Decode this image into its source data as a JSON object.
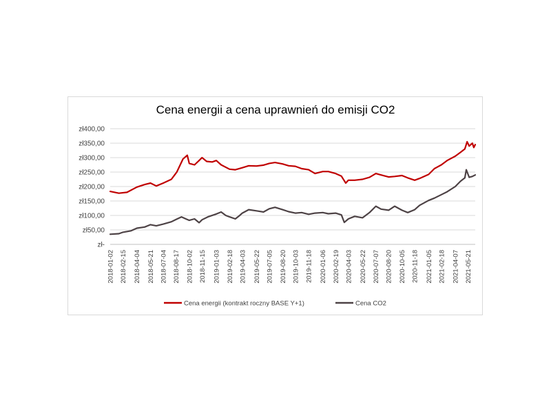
{
  "chart_data": {
    "type": "line",
    "title": "Cena energii a cena uprawnień do emisji CO2",
    "y_tick_labels": [
      "zł-",
      "zł50,00",
      "zł100,00",
      "zł150,00",
      "zł200,00",
      "zł250,00",
      "zł300,00",
      "zł350,00",
      "zł400,00"
    ],
    "ylim": [
      0,
      400
    ],
    "y_ticks": [
      0,
      50,
      100,
      150,
      200,
      250,
      300,
      350,
      400
    ],
    "x_tick_labels": [
      "2018-01-02",
      "2018-02-15",
      "2018-04-04",
      "2018-05-21",
      "2018-07-04",
      "2018-08-17",
      "2018-10-02",
      "2018-11-15",
      "2019-01-03",
      "2019-02-18",
      "2019-04-03",
      "2019-05-22",
      "2019-07-05",
      "2019-08-20",
      "2019-10-03",
      "2019-11-18",
      "2020-01-06",
      "2020-02-19",
      "2020-04-03",
      "2020-05-22",
      "2020-07-07",
      "2020-08-20",
      "2020-10-05",
      "2020-11-18",
      "2021-01-05",
      "2021-02-18",
      "2021-04-07",
      "2021-05-21"
    ],
    "x_range": [
      "2018-01-02",
      "2021-06-15"
    ],
    "grid": "horizontal",
    "legend_position": "bottom",
    "series": [
      {
        "name": "Cena energii (kontrakt roczny BASE Y+1)",
        "color": "#c00000",
        "points": [
          [
            "2018-01-02",
            183
          ],
          [
            "2018-02-01",
            177
          ],
          [
            "2018-03-01",
            180
          ],
          [
            "2018-04-04",
            198
          ],
          [
            "2018-05-01",
            207
          ],
          [
            "2018-05-21",
            212
          ],
          [
            "2018-06-10",
            202
          ],
          [
            "2018-07-04",
            212
          ],
          [
            "2018-08-01",
            225
          ],
          [
            "2018-08-20",
            250
          ],
          [
            "2018-09-10",
            295
          ],
          [
            "2018-09-25",
            308
          ],
          [
            "2018-10-02",
            280
          ],
          [
            "2018-10-20",
            275
          ],
          [
            "2018-11-05",
            290
          ],
          [
            "2018-11-15",
            300
          ],
          [
            "2018-12-01",
            287
          ],
          [
            "2018-12-20",
            285
          ],
          [
            "2019-01-03",
            290
          ],
          [
            "2019-01-20",
            275
          ],
          [
            "2019-02-18",
            260
          ],
          [
            "2019-03-10",
            258
          ],
          [
            "2019-04-03",
            265
          ],
          [
            "2019-04-25",
            272
          ],
          [
            "2019-05-22",
            271
          ],
          [
            "2019-06-15",
            274
          ],
          [
            "2019-07-05",
            280
          ],
          [
            "2019-07-25",
            283
          ],
          [
            "2019-08-20",
            278
          ],
          [
            "2019-09-10",
            272
          ],
          [
            "2019-10-03",
            270
          ],
          [
            "2019-10-25",
            262
          ],
          [
            "2019-11-18",
            258
          ],
          [
            "2019-12-10",
            245
          ],
          [
            "2020-01-06",
            252
          ],
          [
            "2020-01-25",
            252
          ],
          [
            "2020-02-19",
            245
          ],
          [
            "2020-03-10",
            236
          ],
          [
            "2020-03-25",
            212
          ],
          [
            "2020-04-03",
            222
          ],
          [
            "2020-04-25",
            222
          ],
          [
            "2020-05-22",
            225
          ],
          [
            "2020-06-15",
            232
          ],
          [
            "2020-07-07",
            245
          ],
          [
            "2020-07-25",
            240
          ],
          [
            "2020-08-20",
            233
          ],
          [
            "2020-09-10",
            235
          ],
          [
            "2020-10-05",
            238
          ],
          [
            "2020-10-25",
            230
          ],
          [
            "2020-11-18",
            222
          ],
          [
            "2020-12-05",
            228
          ],
          [
            "2021-01-05",
            242
          ],
          [
            "2021-01-25",
            262
          ],
          [
            "2021-02-18",
            275
          ],
          [
            "2021-03-10",
            290
          ],
          [
            "2021-04-07",
            305
          ],
          [
            "2021-04-25",
            318
          ],
          [
            "2021-05-10",
            330
          ],
          [
            "2021-05-18",
            355
          ],
          [
            "2021-05-25",
            340
          ],
          [
            "2021-06-05",
            350
          ],
          [
            "2021-06-10",
            335
          ],
          [
            "2021-06-15",
            345
          ]
        ]
      },
      {
        "name": "Cena CO2",
        "color": "#4d4245",
        "points": [
          [
            "2018-01-02",
            35
          ],
          [
            "2018-02-01",
            37
          ],
          [
            "2018-02-15",
            42
          ],
          [
            "2018-03-15",
            47
          ],
          [
            "2018-04-04",
            56
          ],
          [
            "2018-05-01",
            60
          ],
          [
            "2018-05-21",
            68
          ],
          [
            "2018-06-10",
            64
          ],
          [
            "2018-07-04",
            70
          ],
          [
            "2018-08-01",
            78
          ],
          [
            "2018-08-17",
            86
          ],
          [
            "2018-09-05",
            95
          ],
          [
            "2018-09-20",
            88
          ],
          [
            "2018-10-02",
            83
          ],
          [
            "2018-10-20",
            88
          ],
          [
            "2018-11-05",
            75
          ],
          [
            "2018-11-15",
            85
          ],
          [
            "2018-12-05",
            95
          ],
          [
            "2019-01-03",
            105
          ],
          [
            "2019-01-20",
            112
          ],
          [
            "2019-02-05",
            100
          ],
          [
            "2019-02-18",
            95
          ],
          [
            "2019-03-10",
            88
          ],
          [
            "2019-03-25",
            100
          ],
          [
            "2019-04-03",
            108
          ],
          [
            "2019-04-25",
            120
          ],
          [
            "2019-05-22",
            116
          ],
          [
            "2019-06-15",
            112
          ],
          [
            "2019-07-05",
            123
          ],
          [
            "2019-07-25",
            128
          ],
          [
            "2019-08-20",
            120
          ],
          [
            "2019-09-10",
            113
          ],
          [
            "2019-10-03",
            108
          ],
          [
            "2019-10-25",
            110
          ],
          [
            "2019-11-18",
            104
          ],
          [
            "2019-12-10",
            108
          ],
          [
            "2020-01-06",
            110
          ],
          [
            "2020-01-25",
            106
          ],
          [
            "2020-02-19",
            108
          ],
          [
            "2020-03-10",
            102
          ],
          [
            "2020-03-20",
            76
          ],
          [
            "2020-04-03",
            88
          ],
          [
            "2020-04-25",
            97
          ],
          [
            "2020-05-22",
            92
          ],
          [
            "2020-06-15",
            110
          ],
          [
            "2020-07-07",
            132
          ],
          [
            "2020-07-25",
            122
          ],
          [
            "2020-08-20",
            118
          ],
          [
            "2020-09-10",
            132
          ],
          [
            "2020-10-05",
            118
          ],
          [
            "2020-10-25",
            110
          ],
          [
            "2020-11-18",
            120
          ],
          [
            "2020-12-05",
            135
          ],
          [
            "2021-01-05",
            152
          ],
          [
            "2021-01-25",
            160
          ],
          [
            "2021-02-18",
            172
          ],
          [
            "2021-03-10",
            182
          ],
          [
            "2021-04-07",
            200
          ],
          [
            "2021-04-25",
            218
          ],
          [
            "2021-05-10",
            230
          ],
          [
            "2021-05-15",
            258
          ],
          [
            "2021-05-25",
            232
          ],
          [
            "2021-06-05",
            235
          ],
          [
            "2021-06-15",
            240
          ]
        ]
      }
    ]
  }
}
